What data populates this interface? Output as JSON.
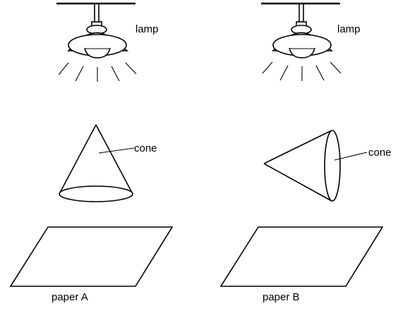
{
  "labels": {
    "lamp_a": "lamp",
    "lamp_b": "lamp",
    "cone_a": "cone",
    "cone_b": "cone",
    "paper_a": "paper A",
    "paper_b": "paper B"
  }
}
